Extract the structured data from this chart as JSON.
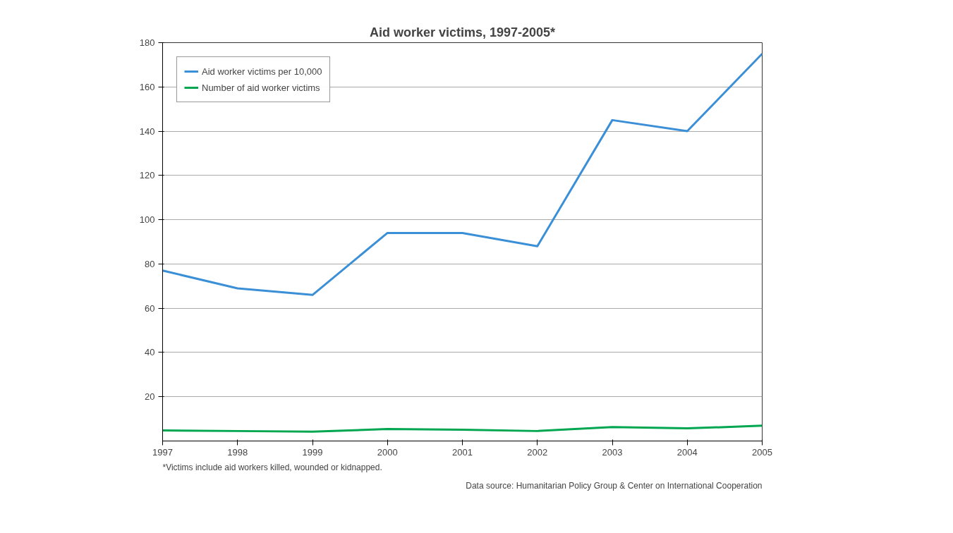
{
  "chart_data": {
    "type": "line",
    "title": "Aid worker victims, 1997-2005*",
    "x": [
      1997,
      1998,
      1999,
      2000,
      2001,
      2002,
      2003,
      2004,
      2005
    ],
    "series": [
      {
        "name": "Aid worker victims per 10,000",
        "color": "#3a8fd6",
        "values": [
          77,
          69,
          66,
          94,
          94,
          88,
          145,
          140,
          175
        ]
      },
      {
        "name": "Number of aid worker victims",
        "color": "#00a650",
        "values": [
          4.8,
          4.5,
          4.2,
          5.4,
          5.1,
          4.5,
          6.3,
          5.7,
          6.9
        ]
      }
    ],
    "xlim": [
      1997,
      2005
    ],
    "xticks": [
      1997,
      1998,
      1999,
      2000,
      2001,
      2002,
      2003,
      2004,
      2005
    ],
    "ylim": [
      0,
      180
    ],
    "yticks": [
      20,
      40,
      60,
      80,
      100,
      120,
      140,
      160,
      180
    ],
    "grid": "y",
    "legend": "top left",
    "marker": "none",
    "line_style": "solid",
    "annotations": [
      "*Victims include aid workers killed, wounded or kidnapped.",
      "Data source: Humanitarian Policy Group & Center on International Cooperation"
    ]
  }
}
